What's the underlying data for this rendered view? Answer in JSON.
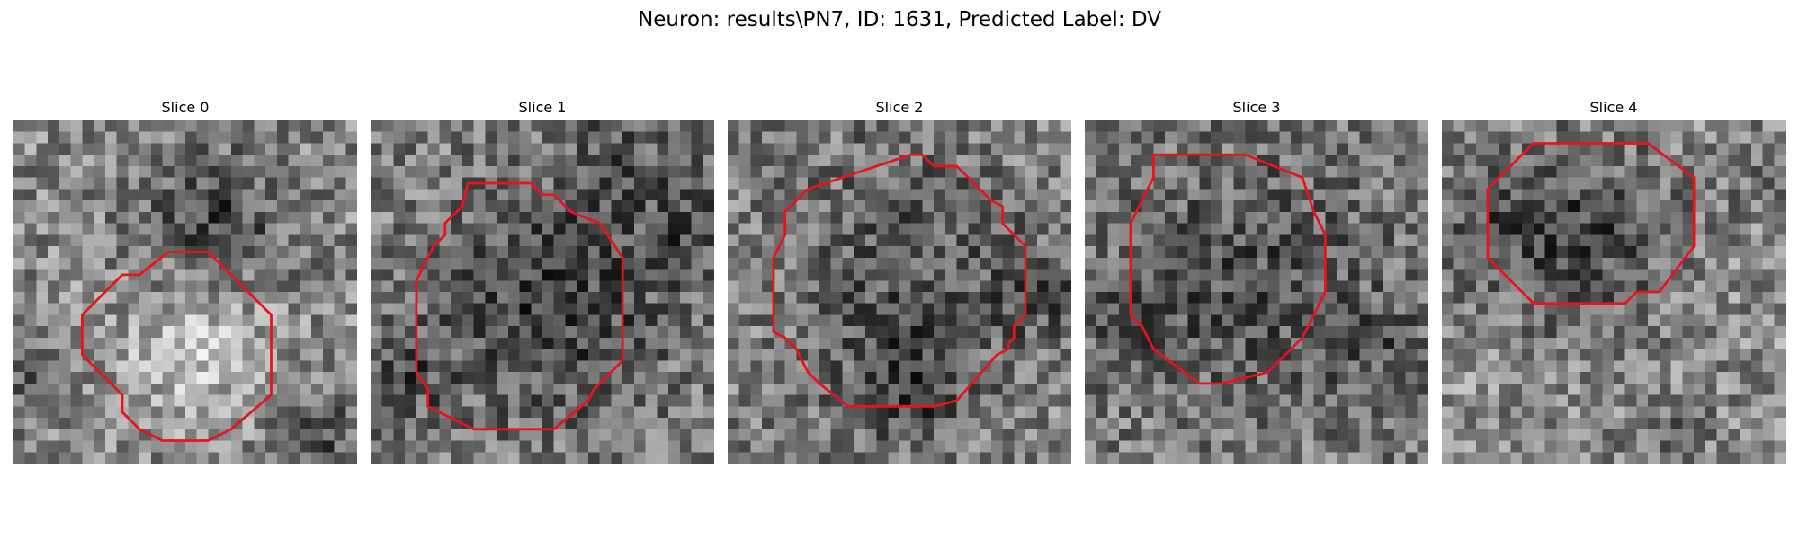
{
  "figure": {
    "title": "Neuron: results\\PN7, ID: 1631, Predicted Label: DV"
  },
  "panels": [
    {
      "title": "Slice 0"
    },
    {
      "title": "Slice 1"
    },
    {
      "title": "Slice 2"
    },
    {
      "title": "Slice 3"
    },
    {
      "title": "Slice 4"
    }
  ],
  "colors": {
    "contour": "#e8141c",
    "background": "#ffffff"
  }
}
